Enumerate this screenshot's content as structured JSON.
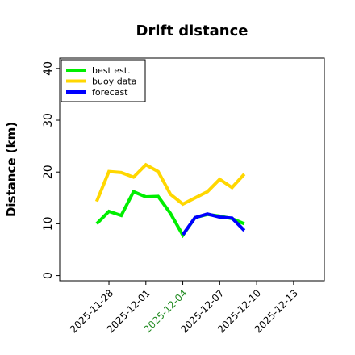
{
  "chart_data": {
    "type": "line",
    "title": "Drift distance",
    "xlabel": "",
    "ylabel": "Distance (km)",
    "ylim": [
      -1,
      42
    ],
    "yticks": [
      0,
      10,
      20,
      30,
      40
    ],
    "xticks": [
      "2025-11-28",
      "2025-12-01",
      "2025-12-04",
      "2025-12-07",
      "2025-12-10",
      "2025-12-13"
    ],
    "highlighted_tick": "2025-12-04",
    "highlight_color": "#228B22",
    "grid": false,
    "legend_position": "top-left",
    "series": [
      {
        "name": "best est.",
        "color": "#00ee00",
        "x": [
          "2025-11-27",
          "2025-11-28",
          "2025-11-29",
          "2025-11-30",
          "2025-12-01",
          "2025-12-02",
          "2025-12-03",
          "2025-12-04",
          "2025-12-05",
          "2025-12-06",
          "2025-12-07",
          "2025-12-08",
          "2025-12-09"
        ],
        "values": [
          10.0,
          12.4,
          11.6,
          16.2,
          15.2,
          15.3,
          12.0,
          7.8,
          11.2,
          11.8,
          11.5,
          11.0,
          10.0
        ]
      },
      {
        "name": "buoy data",
        "color": "#ffd700",
        "x": [
          "2025-11-27",
          "2025-11-28",
          "2025-11-29",
          "2025-11-30",
          "2025-12-01",
          "2025-12-02",
          "2025-12-03",
          "2025-12-04",
          "2025-12-05",
          "2025-12-06",
          "2025-12-07",
          "2025-12-08",
          "2025-12-09"
        ],
        "values": [
          14.3,
          20.1,
          19.9,
          19.0,
          21.4,
          20.1,
          15.7,
          13.8,
          15.0,
          16.2,
          18.6,
          17.0,
          19.6
        ]
      },
      {
        "name": "forecast",
        "color": "#0000ff",
        "x": [
          "2025-12-04",
          "2025-12-05",
          "2025-12-06",
          "2025-12-07",
          "2025-12-08",
          "2025-12-09"
        ],
        "values": [
          7.9,
          11.2,
          11.9,
          11.3,
          11.1,
          8.7
        ]
      }
    ]
  }
}
